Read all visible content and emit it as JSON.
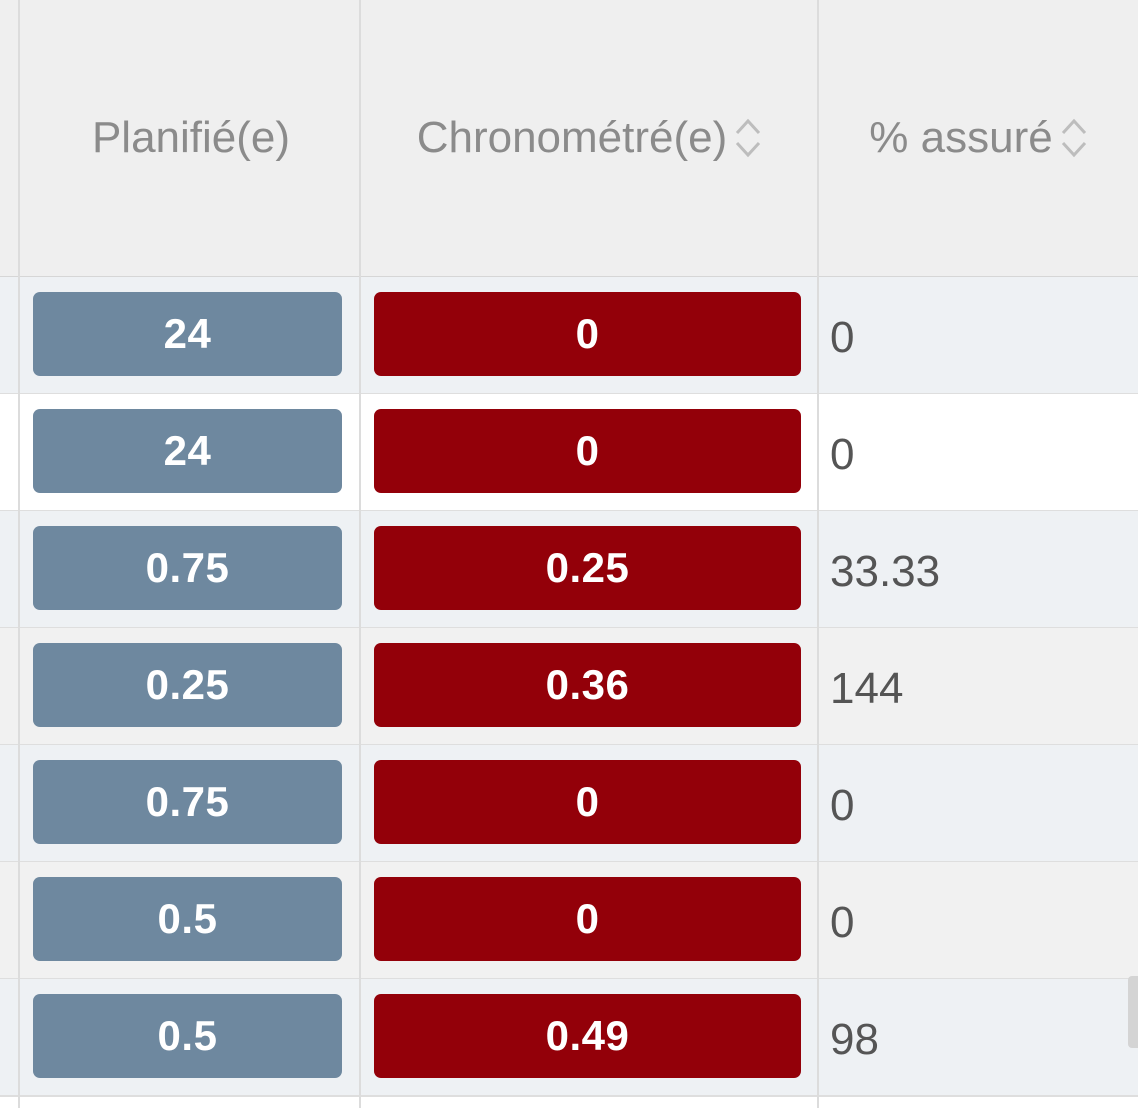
{
  "table": {
    "columns": [
      {
        "key": "planned",
        "label": "Planifié(e)",
        "sortable": false
      },
      {
        "key": "timed",
        "label": "Chronométré(e)",
        "sortable": true,
        "sort_icon": "sort-updown-icon"
      },
      {
        "key": "pct",
        "label": "% assuré",
        "sortable": true,
        "sort_icon": "sort-updown-icon"
      }
    ],
    "rows": [
      {
        "planned": "24",
        "timed": "0",
        "pct": "0"
      },
      {
        "planned": "24",
        "timed": "0",
        "pct": "0"
      },
      {
        "planned": "0.75",
        "timed": "0.25",
        "pct": "33.33"
      },
      {
        "planned": "0.25",
        "timed": "0.36",
        "pct": "144"
      },
      {
        "planned": "0.75",
        "timed": "0",
        "pct": "0"
      },
      {
        "planned": "0.5",
        "timed": "0",
        "pct": "0"
      },
      {
        "planned": "0.5",
        "timed": "0.49",
        "pct": "98"
      }
    ]
  },
  "colors": {
    "planned_badge": "#6e889f",
    "timed_badge": "#930009",
    "header_bg": "#efefef"
  }
}
